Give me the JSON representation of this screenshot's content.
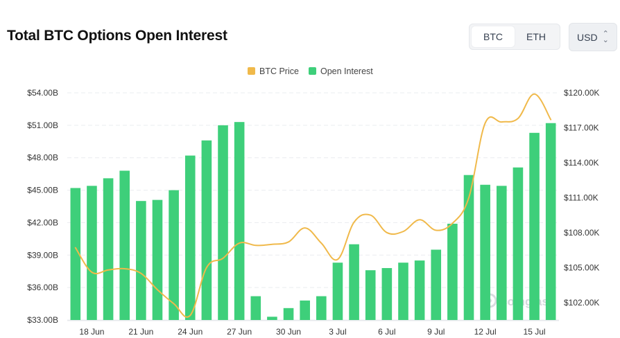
{
  "header": {
    "title": "Total BTC Options Open Interest",
    "asset_tabs": [
      {
        "label": "BTC",
        "active": true
      },
      {
        "label": "ETH",
        "active": false
      }
    ],
    "currency_select": {
      "value": "USD",
      "icon": "up-down-chevron-icon"
    }
  },
  "colors": {
    "price_line": "#f0b94a",
    "open_interest_bar": "#3ecf7a",
    "grid": "#e9ecef",
    "tick_text": "#333333"
  },
  "watermark": "coinglass",
  "chart_data": {
    "type": "bar",
    "legend": [
      {
        "label": "BTC Price",
        "color": "#f0b94a"
      },
      {
        "label": "Open Interest",
        "color": "#3ecf7a"
      }
    ],
    "legend_position": "top-center",
    "grid": true,
    "categories": [
      "17 Jun",
      "18 Jun",
      "19 Jun",
      "20 Jun",
      "21 Jun",
      "22 Jun",
      "23 Jun",
      "24 Jun",
      "25 Jun",
      "26 Jun",
      "27 Jun",
      "28 Jun",
      "29 Jun",
      "30 Jun",
      "1 Jul",
      "2 Jul",
      "3 Jul",
      "4 Jul",
      "5 Jul",
      "6 Jul",
      "7 Jul",
      "8 Jul",
      "9 Jul",
      "10 Jul",
      "11 Jul",
      "12 Jul",
      "13 Jul",
      "14 Jul",
      "15 Jul",
      "16 Jul"
    ],
    "x_tick_labels": [
      "18 Jun",
      "21 Jun",
      "24 Jun",
      "27 Jun",
      "30 Jun",
      "3 Jul",
      "6 Jul",
      "9 Jul",
      "12 Jul",
      "15 Jul"
    ],
    "x_tick_indices": [
      1,
      4,
      7,
      10,
      13,
      16,
      19,
      22,
      25,
      28
    ],
    "series": [
      {
        "name": "Open Interest",
        "type": "bar",
        "axis": "left",
        "values": [
          45.2,
          45.4,
          46.1,
          46.8,
          44.0,
          44.1,
          45.0,
          48.2,
          49.6,
          51.0,
          51.3,
          35.2,
          33.3,
          34.1,
          34.8,
          35.2,
          38.3,
          40.0,
          37.6,
          37.8,
          38.3,
          38.5,
          39.5,
          41.9,
          46.4,
          45.5,
          45.4,
          47.1,
          50.3,
          51.2
        ]
      },
      {
        "name": "BTC Price",
        "type": "line",
        "axis": "right",
        "values": [
          106.7,
          104.6,
          104.8,
          104.9,
          104.5,
          103.1,
          101.9,
          100.9,
          105.0,
          105.8,
          107.1,
          106.9,
          107.0,
          107.2,
          108.4,
          107.1,
          105.7,
          108.9,
          109.5,
          108.0,
          108.1,
          109.1,
          108.2,
          108.8,
          111.0,
          117.4,
          117.5,
          117.8,
          119.9,
          117.7
        ]
      }
    ],
    "y_left": {
      "ticks": [
        "$33.00B",
        "$36.00B",
        "$39.00B",
        "$42.00B",
        "$45.00B",
        "$48.00B",
        "$51.00B",
        "$54.00B"
      ],
      "ylim": [
        33,
        54
      ]
    },
    "y_right": {
      "ticks": [
        "$102.00K",
        "$105.00K",
        "$108.00K",
        "$111.00K",
        "$114.00K",
        "$117.00K",
        "$120.00K"
      ],
      "ylim": [
        100.5,
        120
      ]
    }
  }
}
